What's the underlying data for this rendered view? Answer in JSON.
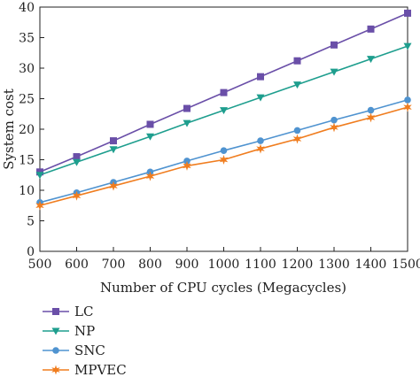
{
  "chart_data": {
    "type": "line",
    "xlabel": "Number of CPU cycles (Megacycles)",
    "ylabel": "System cost",
    "x": [
      500,
      600,
      700,
      800,
      900,
      1000,
      1100,
      1200,
      1300,
      1400,
      1500
    ],
    "xlim": [
      500,
      1500
    ],
    "ylim": [
      0,
      40
    ],
    "x_ticks": [
      "500",
      "600",
      "700",
      "800",
      "900",
      "1000",
      "1100",
      "1200",
      "1300",
      "1400",
      "1500"
    ],
    "y_ticks": [
      "0",
      "5",
      "10",
      "15",
      "20",
      "25",
      "30",
      "35",
      "40"
    ],
    "grid": false,
    "legend_position": "bottom-left, below plot",
    "series": [
      {
        "name": "LC",
        "color": "#6a4fa8",
        "marker": "square",
        "values": [
          13.0,
          15.5,
          18.1,
          20.8,
          23.4,
          26.0,
          28.6,
          31.2,
          33.8,
          36.4,
          39.0
        ]
      },
      {
        "name": "NP",
        "color": "#1e9e8e",
        "marker": "triangle-down",
        "values": [
          12.5,
          14.6,
          16.7,
          18.8,
          21.0,
          23.1,
          25.2,
          27.3,
          29.4,
          31.5,
          33.6
        ]
      },
      {
        "name": "SNC",
        "color": "#4f93d0",
        "marker": "circle",
        "values": [
          8.0,
          9.6,
          11.3,
          13.0,
          14.8,
          16.5,
          18.1,
          19.8,
          21.5,
          23.1,
          24.8
        ]
      },
      {
        "name": "MPVEC",
        "color": "#f07d1f",
        "marker": "star",
        "values": [
          7.5,
          9.1,
          10.7,
          12.3,
          14.0,
          15.0,
          16.8,
          18.4,
          20.3,
          21.9,
          23.6
        ]
      }
    ]
  }
}
